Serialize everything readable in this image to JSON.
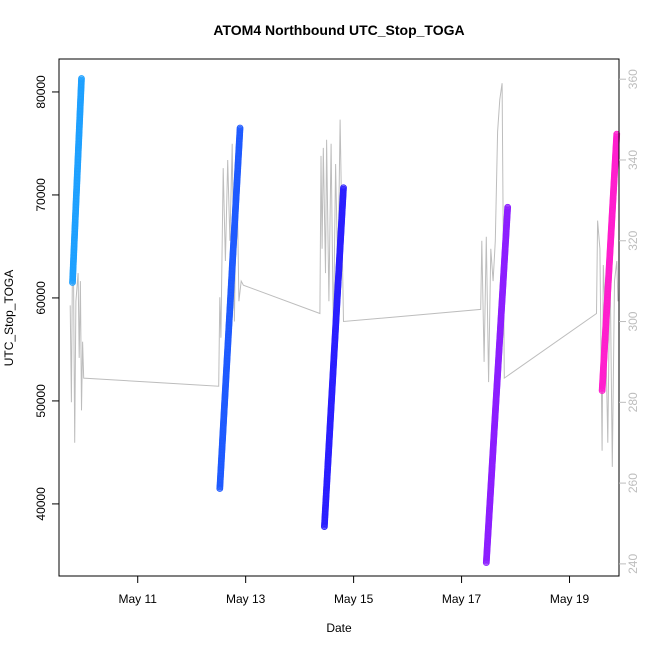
{
  "chart_data": {
    "type": "scatter",
    "title": "ATOM4 Northbound UTC_Stop_TOGA",
    "xlabel": "Date",
    "ylabel": "UTC_Stop_TOGA",
    "x_ticks": [
      "May 11",
      "May 13",
      "May 15",
      "May 17",
      "May 19"
    ],
    "y_ticks": [
      "40000",
      "50000",
      "60000",
      "70000",
      "80000"
    ],
    "y2_ticks": [
      "240",
      "260",
      "280",
      "300",
      "320",
      "340",
      "360"
    ],
    "xlim": [
      "2023-05-09T13:00",
      "2023-05-19T22:00"
    ],
    "ylim": [
      33000,
      83200
    ],
    "y2lim": [
      237,
      365
    ],
    "grid": false,
    "series": [
      {
        "color": "#1EA0FF",
        "x_start": "2023-05-09T19:00",
        "x_end": "2023-05-09T23:00",
        "y_start": 61500,
        "y_end": 81300
      },
      {
        "color": "#1E5AFF",
        "x_start": "2023-05-12T12:30",
        "x_end": "2023-05-12T21:30",
        "y_start": 41500,
        "y_end": 76500
      },
      {
        "color": "#2A1EFF",
        "x_start": "2023-05-14T11:00",
        "x_end": "2023-05-14T19:30",
        "y_start": 37800,
        "y_end": 70700
      },
      {
        "color": "#8C1EFF",
        "x_start": "2023-05-17T11:00",
        "x_end": "2023-05-17T20:30",
        "y_start": 34300,
        "y_end": 68800
      },
      {
        "color": "#FF1ECD",
        "x_start": "2023-05-19T14:30",
        "x_end": "2023-05-19T21:00",
        "y_start": 51000,
        "y_end": 75900
      }
    ],
    "secondary_series": {
      "color": "#bdbdbd",
      "points": [
        [
          "2023-05-09T18:00",
          304
        ],
        [
          "2023-05-09T18:30",
          280
        ],
        [
          "2023-05-09T19:00",
          316
        ],
        [
          "2023-05-09T19:30",
          309
        ],
        [
          "2023-05-09T20:00",
          270
        ],
        [
          "2023-05-09T20:30",
          305
        ],
        [
          "2023-05-09T21:30",
          312
        ],
        [
          "2023-05-09T22:00",
          291
        ],
        [
          "2023-05-09T22:30",
          310
        ],
        [
          "2023-05-09T23:00",
          278
        ],
        [
          "2023-05-09T23:30",
          295
        ],
        [
          "2023-05-10T00:00",
          286
        ],
        [
          "2023-05-12T12:00",
          284
        ],
        [
          "2023-05-12T12:30",
          306
        ],
        [
          "2023-05-12T13:00",
          296
        ],
        [
          "2023-05-12T14:00",
          338
        ],
        [
          "2023-05-12T15:00",
          315
        ],
        [
          "2023-05-12T16:00",
          340
        ],
        [
          "2023-05-12T17:00",
          320
        ],
        [
          "2023-05-12T18:00",
          344
        ],
        [
          "2023-05-12T19:00",
          300
        ],
        [
          "2023-05-12T20:00",
          341
        ],
        [
          "2023-05-12T21:00",
          305
        ],
        [
          "2023-05-12T22:00",
          310
        ],
        [
          "2023-05-12T23:00",
          309
        ],
        [
          "2023-05-14T09:00",
          302
        ],
        [
          "2023-05-14T09:30",
          341
        ],
        [
          "2023-05-14T10:00",
          318
        ],
        [
          "2023-05-14T10:30",
          343
        ],
        [
          "2023-05-14T11:30",
          312
        ],
        [
          "2023-05-14T12:00",
          345
        ],
        [
          "2023-05-14T13:00",
          305
        ],
        [
          "2023-05-14T14:00",
          344
        ],
        [
          "2023-05-14T15:00",
          296
        ],
        [
          "2023-05-14T16:00",
          339
        ],
        [
          "2023-05-14T17:00",
          310
        ],
        [
          "2023-05-14T18:00",
          350
        ],
        [
          "2023-05-14T19:30",
          300
        ],
        [
          "2023-05-17T08:30",
          303
        ],
        [
          "2023-05-17T09:00",
          320
        ],
        [
          "2023-05-17T10:00",
          290
        ],
        [
          "2023-05-17T11:00",
          321
        ],
        [
          "2023-05-17T12:00",
          285
        ],
        [
          "2023-05-17T13:00",
          318
        ],
        [
          "2023-05-17T14:00",
          310
        ],
        [
          "2023-05-17T15:00",
          320
        ],
        [
          "2023-05-17T16:00",
          347
        ],
        [
          "2023-05-17T17:00",
          355
        ],
        [
          "2023-05-17T18:00",
          359
        ],
        [
          "2023-05-17T19:00",
          286
        ],
        [
          "2023-05-19T12:00",
          302
        ],
        [
          "2023-05-19T12:30",
          325
        ],
        [
          "2023-05-19T13:30",
          318
        ],
        [
          "2023-05-19T14:30",
          268
        ],
        [
          "2023-05-19T15:00",
          314
        ],
        [
          "2023-05-19T16:00",
          300
        ],
        [
          "2023-05-19T17:00",
          270
        ],
        [
          "2023-05-19T18:00",
          316
        ],
        [
          "2023-05-19T19:00",
          264
        ],
        [
          "2023-05-19T20:00",
          310
        ],
        [
          "2023-05-19T21:00",
          315
        ],
        [
          "2023-05-19T21:30",
          305
        ]
      ]
    }
  }
}
